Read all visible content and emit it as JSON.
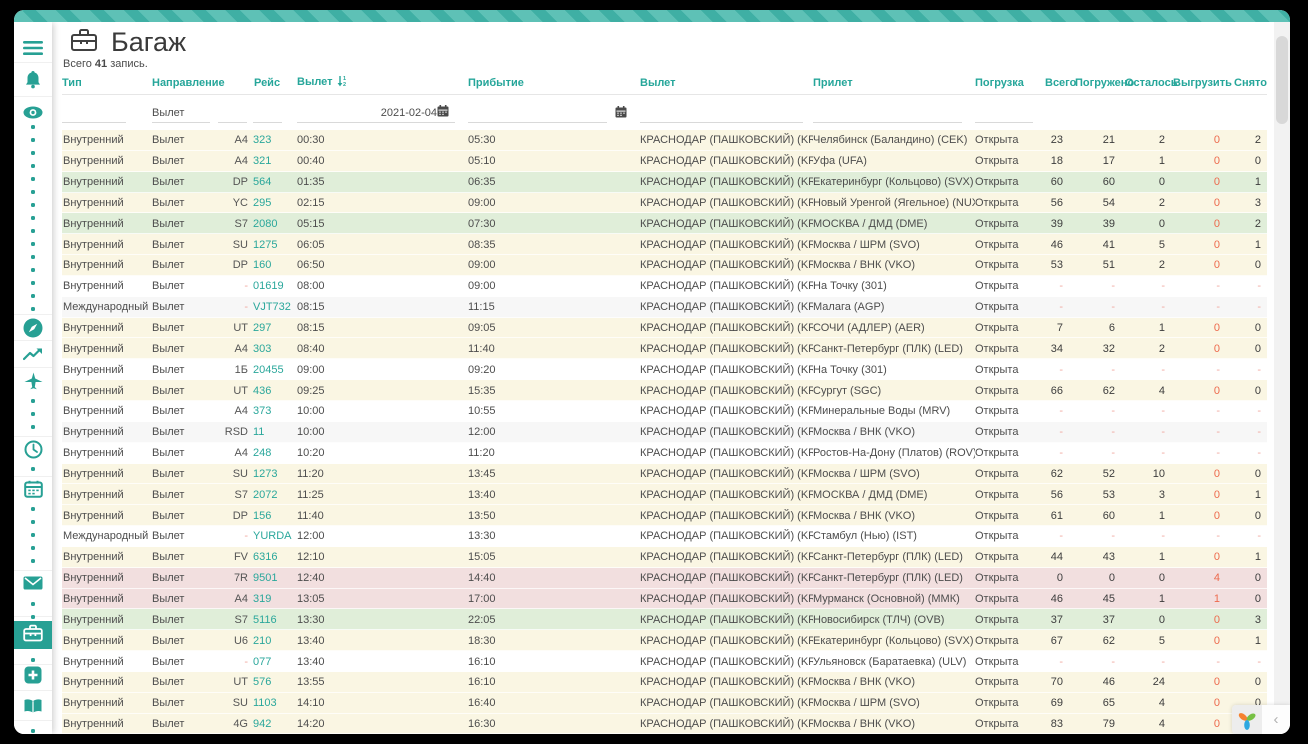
{
  "page": {
    "title": "Багаж",
    "records_prefix": "Всего",
    "records_count": "41",
    "records_suffix": "запись."
  },
  "colors": {
    "accent": "#26a69a",
    "stripe_light": "#5ec1b6",
    "stripe_dark": "#3fafa4",
    "band_yellow": "#faf6e3",
    "band_green": "#e0eed9",
    "band_pink": "#f2dfdf",
    "unload_red": "#ed6a4d",
    "link_teal": "#2aa79b"
  },
  "sidebar": {
    "items": [
      {
        "icon": "menu-icon"
      },
      {
        "icon": "bell-icon"
      },
      {
        "icon": "eye-icon"
      },
      {
        "dots": 15
      },
      {
        "icon": "compass-icon"
      },
      {
        "icon": "chart-line-icon"
      },
      {
        "icon": "plane-icon"
      },
      {
        "dots": 3
      },
      {
        "icon": "clock-icon"
      },
      {
        "dots": 1
      },
      {
        "icon": "calendar-icon"
      },
      {
        "dots": 5
      },
      {
        "icon": "envelope-icon"
      },
      {
        "dots": 2
      },
      {
        "icon": "briefcase-icon",
        "active": true
      },
      {
        "dots": 1
      },
      {
        "icon": "plus-square-icon"
      },
      {
        "icon": "book-icon"
      },
      {
        "dots": 2
      }
    ]
  },
  "table": {
    "headers": {
      "type": "Тип",
      "direction": "Направление",
      "flight": "Рейс",
      "departure": "Вылет",
      "arrival": "Прибытие",
      "dep_airport": "Вылет",
      "arr_airport": "Прилет",
      "loading": "Погрузка",
      "total": "Всего",
      "loaded": "Погружено",
      "remaining": "Осталось",
      "unload": "Выгрузить",
      "removed": "Снято"
    },
    "filters": {
      "direction_value": "Вылет",
      "date_value": "2021-02-04"
    },
    "rows": [
      {
        "type": "Внутренний",
        "direction": "Вылет",
        "airline": "A4",
        "number": "323",
        "dep_time": "00:30",
        "arr_time": "05:30",
        "dep_airport": "КРАСНОДАР (ПАШКОВСКИЙ) (KRR)",
        "arr_airport": "Челябинск (Баландино) (CEK)",
        "loading": "Открыта",
        "total": "23",
        "loaded": "21",
        "remaining": "2",
        "unload": "0",
        "removed": "2",
        "band": "y"
      },
      {
        "type": "Внутренний",
        "direction": "Вылет",
        "airline": "A4",
        "number": "321",
        "dep_time": "00:40",
        "arr_time": "05:10",
        "dep_airport": "КРАСНОДАР (ПАШКОВСКИЙ) (KRR)",
        "arr_airport": "Уфа (UFA)",
        "loading": "Открыта",
        "total": "18",
        "loaded": "17",
        "remaining": "1",
        "unload": "0",
        "removed": "0",
        "band": "y"
      },
      {
        "type": "Внутренний",
        "direction": "Вылет",
        "airline": "DP",
        "number": "564",
        "dep_time": "01:35",
        "arr_time": "06:35",
        "dep_airport": "КРАСНОДАР (ПАШКОВСКИЙ) (KRR)",
        "arr_airport": "Екатеринбург (Кольцово) (SVX)",
        "loading": "Открыта",
        "total": "60",
        "loaded": "60",
        "remaining": "0",
        "unload": "0",
        "removed": "1",
        "band": "g"
      },
      {
        "type": "Внутренний",
        "direction": "Вылет",
        "airline": "YC",
        "number": "295",
        "dep_time": "02:15",
        "arr_time": "09:00",
        "dep_airport": "КРАСНОДАР (ПАШКОВСКИЙ) (KRR)",
        "arr_airport": "Новый Уренгой (Ягельное) (NUX)",
        "loading": "Открыта",
        "total": "56",
        "loaded": "54",
        "remaining": "2",
        "unload": "0",
        "removed": "3",
        "band": "y"
      },
      {
        "type": "Внутренний",
        "direction": "Вылет",
        "airline": "S7",
        "number": "2080",
        "dep_time": "05:15",
        "arr_time": "07:30",
        "dep_airport": "КРАСНОДАР (ПАШКОВСКИЙ) (KRR)",
        "arr_airport": "МОСКВА / ДМД (DME)",
        "loading": "Открыта",
        "total": "39",
        "loaded": "39",
        "remaining": "0",
        "unload": "0",
        "removed": "2",
        "band": "g"
      },
      {
        "type": "Внутренний",
        "direction": "Вылет",
        "airline": "SU",
        "number": "1275",
        "dep_time": "06:05",
        "arr_time": "08:35",
        "dep_airport": "КРАСНОДАР (ПАШКОВСКИЙ) (KRR)",
        "arr_airport": "Москва / ШРМ (SVO)",
        "loading": "Открыта",
        "total": "46",
        "loaded": "41",
        "remaining": "5",
        "unload": "0",
        "removed": "1",
        "band": "y"
      },
      {
        "type": "Внутренний",
        "direction": "Вылет",
        "airline": "DP",
        "number": "160",
        "dep_time": "06:50",
        "arr_time": "09:00",
        "dep_airport": "КРАСНОДАР (ПАШКОВСКИЙ) (KRR)",
        "arr_airport": "Москва / ВНК (VKO)",
        "loading": "Открыта",
        "total": "53",
        "loaded": "51",
        "remaining": "2",
        "unload": "0",
        "removed": "0",
        "band": "y"
      },
      {
        "type": "Внутренний",
        "direction": "Вылет",
        "airline": "-",
        "number": "01619",
        "dep_time": "08:00",
        "arr_time": "09:00",
        "dep_airport": "КРАСНОДАР (ПАШКОВСКИЙ) (KRR)",
        "arr_airport": "На Точку (301)",
        "loading": "Открыта",
        "total": "-",
        "loaded": "-",
        "remaining": "-",
        "unload": "-",
        "removed": "-",
        "band": "w"
      },
      {
        "type": "Международный",
        "direction": "Вылет",
        "airline": "-",
        "number": "VJT732",
        "dep_time": "08:15",
        "arr_time": "11:15",
        "dep_airport": "КРАСНОДАР (ПАШКОВСКИЙ) (KRR)",
        "arr_airport": "Малага (AGP)",
        "loading": "Открыта",
        "total": "-",
        "loaded": "-",
        "remaining": "-",
        "unload": "-",
        "removed": "-",
        "band": "a"
      },
      {
        "type": "Внутренний",
        "direction": "Вылет",
        "airline": "UT",
        "number": "297",
        "dep_time": "08:15",
        "arr_time": "09:05",
        "dep_airport": "КРАСНОДАР (ПАШКОВСКИЙ) (KRR)",
        "arr_airport": "СОЧИ (АДЛЕР) (AER)",
        "loading": "Открыта",
        "total": "7",
        "loaded": "6",
        "remaining": "1",
        "unload": "0",
        "removed": "0",
        "band": "y"
      },
      {
        "type": "Внутренний",
        "direction": "Вылет",
        "airline": "A4",
        "number": "303",
        "dep_time": "08:40",
        "arr_time": "11:40",
        "dep_airport": "КРАСНОДАР (ПАШКОВСКИЙ) (KRR)",
        "arr_airport": "Санкт-Петербург (ПЛК) (LED)",
        "loading": "Открыта",
        "total": "34",
        "loaded": "32",
        "remaining": "2",
        "unload": "0",
        "removed": "0",
        "band": "y"
      },
      {
        "type": "Внутренний",
        "direction": "Вылет",
        "airline": "1Б",
        "number": "20455",
        "dep_time": "09:00",
        "arr_time": "09:20",
        "dep_airport": "КРАСНОДАР (ПАШКОВСКИЙ) (KRR)",
        "arr_airport": "На Точку (301)",
        "loading": "Открыта",
        "total": "-",
        "loaded": "-",
        "remaining": "-",
        "unload": "-",
        "removed": "-",
        "band": "w"
      },
      {
        "type": "Внутренний",
        "direction": "Вылет",
        "airline": "UT",
        "number": "436",
        "dep_time": "09:25",
        "arr_time": "15:35",
        "dep_airport": "КРАСНОДАР (ПАШКОВСКИЙ) (KRR)",
        "arr_airport": "Сургут (SGC)",
        "loading": "Открыта",
        "total": "66",
        "loaded": "62",
        "remaining": "4",
        "unload": "0",
        "removed": "0",
        "band": "y"
      },
      {
        "type": "Внутренний",
        "direction": "Вылет",
        "airline": "A4",
        "number": "373",
        "dep_time": "10:00",
        "arr_time": "10:55",
        "dep_airport": "КРАСНОДАР (ПАШКОВСКИЙ) (KRR)",
        "arr_airport": "Минеральные Воды (MRV)",
        "loading": "Открыта",
        "total": "-",
        "loaded": "-",
        "remaining": "-",
        "unload": "-",
        "removed": "-",
        "band": "w"
      },
      {
        "type": "Внутренний",
        "direction": "Вылет",
        "airline": "RSD",
        "number": "11",
        "dep_time": "10:00",
        "arr_time": "12:00",
        "dep_airport": "КРАСНОДАР (ПАШКОВСКИЙ) (KRR)",
        "arr_airport": "Москва / ВНК (VKO)",
        "loading": "Открыта",
        "total": "-",
        "loaded": "-",
        "remaining": "-",
        "unload": "-",
        "removed": "-",
        "band": "a"
      },
      {
        "type": "Внутренний",
        "direction": "Вылет",
        "airline": "A4",
        "number": "248",
        "dep_time": "10:20",
        "arr_time": "11:20",
        "dep_airport": "КРАСНОДАР (ПАШКОВСКИЙ) (KRR)",
        "arr_airport": "Ростов-На-Дону (Платов) (ROV)",
        "loading": "Открыта",
        "total": "-",
        "loaded": "-",
        "remaining": "-",
        "unload": "-",
        "removed": "-",
        "band": "w"
      },
      {
        "type": "Внутренний",
        "direction": "Вылет",
        "airline": "SU",
        "number": "1273",
        "dep_time": "11:20",
        "arr_time": "13:45",
        "dep_airport": "КРАСНОДАР (ПАШКОВСКИЙ) (KRR)",
        "arr_airport": "Москва / ШРМ (SVO)",
        "loading": "Открыта",
        "total": "62",
        "loaded": "52",
        "remaining": "10",
        "unload": "0",
        "removed": "0",
        "band": "y"
      },
      {
        "type": "Внутренний",
        "direction": "Вылет",
        "airline": "S7",
        "number": "2072",
        "dep_time": "11:25",
        "arr_time": "13:40",
        "dep_airport": "КРАСНОДАР (ПАШКОВСКИЙ) (KRR)",
        "arr_airport": "МОСКВА / ДМД (DME)",
        "loading": "Открыта",
        "total": "56",
        "loaded": "53",
        "remaining": "3",
        "unload": "0",
        "removed": "1",
        "band": "y"
      },
      {
        "type": "Внутренний",
        "direction": "Вылет",
        "airline": "DP",
        "number": "156",
        "dep_time": "11:40",
        "arr_time": "13:50",
        "dep_airport": "КРАСНОДАР (ПАШКОВСКИЙ) (KRR)",
        "arr_airport": "Москва / ВНК (VKO)",
        "loading": "Открыта",
        "total": "61",
        "loaded": "60",
        "remaining": "1",
        "unload": "0",
        "removed": "0",
        "band": "y"
      },
      {
        "type": "Международный",
        "direction": "Вылет",
        "airline": "-",
        "number": "YURDA",
        "dep_time": "12:00",
        "arr_time": "13:30",
        "dep_airport": "КРАСНОДАР (ПАШКОВСКИЙ) (KRR)",
        "arr_airport": "Стамбул (Нью) (IST)",
        "loading": "Открыта",
        "total": "-",
        "loaded": "-",
        "remaining": "-",
        "unload": "-",
        "removed": "-",
        "band": "w"
      },
      {
        "type": "Внутренний",
        "direction": "Вылет",
        "airline": "FV",
        "number": "6316",
        "dep_time": "12:10",
        "arr_time": "15:05",
        "dep_airport": "КРАСНОДАР (ПАШКОВСКИЙ) (KRR)",
        "arr_airport": "Санкт-Петербург (ПЛК) (LED)",
        "loading": "Открыта",
        "total": "44",
        "loaded": "43",
        "remaining": "1",
        "unload": "0",
        "removed": "1",
        "band": "y"
      },
      {
        "type": "Внутренний",
        "direction": "Вылет",
        "airline": "7R",
        "number": "9501",
        "dep_time": "12:40",
        "arr_time": "14:40",
        "dep_airport": "КРАСНОДАР (ПАШКОВСКИЙ) (KRR)",
        "arr_airport": "Санкт-Петербург (ПЛК) (LED)",
        "loading": "Открыта",
        "total": "0",
        "loaded": "0",
        "remaining": "0",
        "unload": "4",
        "removed": "0",
        "band": "p"
      },
      {
        "type": "Внутренний",
        "direction": "Вылет",
        "airline": "A4",
        "number": "319",
        "dep_time": "13:05",
        "arr_time": "17:00",
        "dep_airport": "КРАСНОДАР (ПАШКОВСКИЙ) (KRR)",
        "arr_airport": "Мурманск (Основной) (ММК)",
        "loading": "Открыта",
        "total": "46",
        "loaded": "45",
        "remaining": "1",
        "unload": "1",
        "removed": "0",
        "band": "p"
      },
      {
        "type": "Внутренний",
        "direction": "Вылет",
        "airline": "S7",
        "number": "5116",
        "dep_time": "13:30",
        "arr_time": "22:05",
        "dep_airport": "КРАСНОДАР (ПАШКОВСКИЙ) (KRR)",
        "arr_airport": "Новосибирск (ТЛЧ) (OVB)",
        "loading": "Открыта",
        "total": "37",
        "loaded": "37",
        "remaining": "0",
        "unload": "0",
        "removed": "3",
        "band": "g"
      },
      {
        "type": "Внутренний",
        "direction": "Вылет",
        "airline": "U6",
        "number": "210",
        "dep_time": "13:40",
        "arr_time": "18:30",
        "dep_airport": "КРАСНОДАР (ПАШКОВСКИЙ) (KRR)",
        "arr_airport": "Екатеринбург (Кольцово) (SVX)",
        "loading": "Открыта",
        "total": "67",
        "loaded": "62",
        "remaining": "5",
        "unload": "0",
        "removed": "1",
        "band": "y"
      },
      {
        "type": "Внутренний",
        "direction": "Вылет",
        "airline": "-",
        "number": "077",
        "dep_time": "13:40",
        "arr_time": "16:10",
        "dep_airport": "КРАСНОДАР (ПАШКОВСКИЙ) (KRR)",
        "arr_airport": "Ульяновск (Баратаевка) (ULV)",
        "loading": "Открыта",
        "total": "-",
        "loaded": "-",
        "remaining": "-",
        "unload": "-",
        "removed": "-",
        "band": "w"
      },
      {
        "type": "Внутренний",
        "direction": "Вылет",
        "airline": "UT",
        "number": "576",
        "dep_time": "13:55",
        "arr_time": "16:10",
        "dep_airport": "КРАСНОДАР (ПАШКОВСКИЙ) (KRR)",
        "arr_airport": "Москва / ВНК (VKO)",
        "loading": "Открыта",
        "total": "70",
        "loaded": "46",
        "remaining": "24",
        "unload": "0",
        "removed": "0",
        "band": "y"
      },
      {
        "type": "Внутренний",
        "direction": "Вылет",
        "airline": "SU",
        "number": "1103",
        "dep_time": "14:10",
        "arr_time": "16:40",
        "dep_airport": "КРАСНОДАР (ПАШКОВСКИЙ) (KRR)",
        "arr_airport": "Москва / ШРМ (SVO)",
        "loading": "Открыта",
        "total": "69",
        "loaded": "65",
        "remaining": "4",
        "unload": "0",
        "removed": "0",
        "band": "y"
      },
      {
        "type": "Внутренний",
        "direction": "Вылет",
        "airline": "4G",
        "number": "942",
        "dep_time": "14:20",
        "arr_time": "16:30",
        "dep_airport": "КРАСНОДАР (ПАШКОВСКИЙ) (KRR)",
        "arr_airport": "Москва / ВНК (VKO)",
        "loading": "Открыта",
        "total": "83",
        "loaded": "79",
        "remaining": "4",
        "unload": "0",
        "removed": "0",
        "band": "y"
      }
    ]
  },
  "widget": {
    "chevron": "‹"
  }
}
